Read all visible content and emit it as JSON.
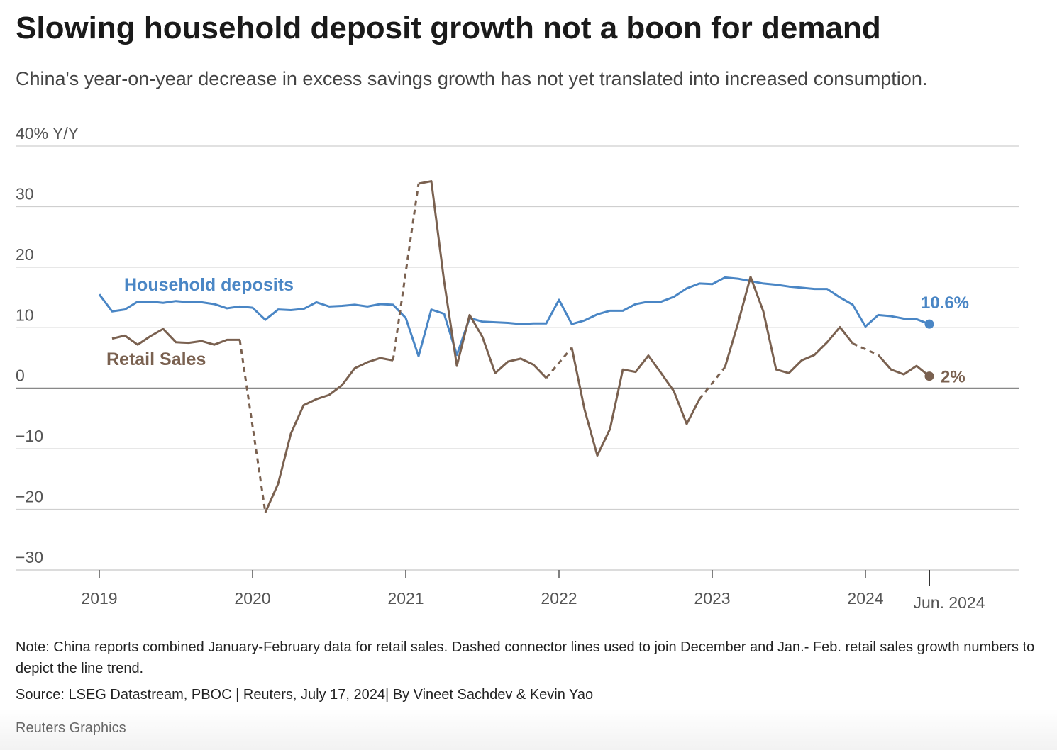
{
  "chart_data": {
    "type": "line",
    "title": "Slowing household deposit growth not a boon for demand",
    "subtitle": "China's year-on-year decrease in excess savings growth has not yet translated into increased consumption.",
    "note": "Note: China reports combined January-February data for retail sales. Dashed connector lines used to join December and Jan.- Feb. retail sales growth numbers to depict the line trend.",
    "source": "Source: LSEG Datastream, PBOC | Reuters, July 17, 2024| By Vineet Sachdev & Kevin Yao",
    "credit": "Reuters Graphics",
    "x": [
      "2019-01",
      "2019-02",
      "2019-03",
      "2019-04",
      "2019-05",
      "2019-06",
      "2019-07",
      "2019-08",
      "2019-09",
      "2019-10",
      "2019-11",
      "2019-12",
      "2020-01",
      "2020-02",
      "2020-03",
      "2020-04",
      "2020-05",
      "2020-06",
      "2020-07",
      "2020-08",
      "2020-09",
      "2020-10",
      "2020-11",
      "2020-12",
      "2021-01",
      "2021-02",
      "2021-03",
      "2021-04",
      "2021-05",
      "2021-06",
      "2021-07",
      "2021-08",
      "2021-09",
      "2021-10",
      "2021-11",
      "2021-12",
      "2022-01",
      "2022-02",
      "2022-03",
      "2022-04",
      "2022-05",
      "2022-06",
      "2022-07",
      "2022-08",
      "2022-09",
      "2022-10",
      "2022-11",
      "2022-12",
      "2023-01",
      "2023-02",
      "2023-03",
      "2023-04",
      "2023-05",
      "2023-06",
      "2023-07",
      "2023-08",
      "2023-09",
      "2023-10",
      "2023-11",
      "2023-12",
      "2024-01",
      "2024-02",
      "2024-03",
      "2024-04",
      "2024-05",
      "2024-06"
    ],
    "series": [
      {
        "name": "Household deposits",
        "color": "#4a86c5",
        "end_label": "10.6%",
        "values": [
          15.5,
          12.7,
          13.0,
          14.3,
          14.3,
          14.1,
          14.4,
          14.2,
          14.2,
          13.9,
          13.2,
          13.5,
          13.3,
          11.3,
          13.0,
          12.9,
          13.1,
          14.2,
          13.5,
          13.6,
          13.8,
          13.5,
          13.9,
          13.8,
          11.6,
          5.3,
          13.0,
          12.3,
          5.5,
          11.6,
          11.0,
          10.9,
          10.8,
          10.6,
          10.7,
          10.7,
          14.6,
          10.6,
          11.2,
          12.2,
          12.8,
          12.8,
          13.9,
          14.3,
          14.3,
          15.1,
          16.5,
          17.3,
          17.2,
          18.3,
          18.1,
          17.7,
          17.3,
          17.1,
          16.8,
          16.6,
          16.4,
          16.4,
          15.0,
          13.8,
          10.2,
          12.1,
          11.9,
          11.5,
          11.4,
          10.6
        ]
      },
      {
        "name": "Retail Sales",
        "color": "#7a6150",
        "end_label": "2%",
        "values": [
          null,
          8.2,
          8.7,
          7.2,
          8.6,
          9.8,
          7.6,
          7.5,
          7.8,
          7.2,
          8.0,
          8.0,
          null,
          -20.5,
          -15.8,
          -7.5,
          -2.8,
          -1.8,
          -1.1,
          0.5,
          3.3,
          4.3,
          5.0,
          4.6,
          null,
          33.8,
          34.2,
          17.7,
          3.7,
          12.1,
          8.5,
          2.5,
          4.4,
          4.9,
          3.9,
          1.7,
          null,
          6.7,
          -3.5,
          -11.1,
          -6.7,
          3.1,
          2.7,
          5.4,
          2.5,
          -0.5,
          -5.9,
          -1.8,
          null,
          3.5,
          10.6,
          18.4,
          12.7,
          3.1,
          2.5,
          4.6,
          5.5,
          7.6,
          10.1,
          7.4,
          null,
          5.5,
          3.1,
          2.3,
          3.7,
          2.0
        ]
      }
    ],
    "connect_gaps": "dashed",
    "xlim": [
      "2018-07",
      "2025-01"
    ],
    "xticks": [
      {
        "value": "2019-01",
        "label": "2019"
      },
      {
        "value": "2020-01",
        "label": "2020"
      },
      {
        "value": "2021-01",
        "label": "2021"
      },
      {
        "value": "2022-01",
        "label": "2022"
      },
      {
        "value": "2023-01",
        "label": "2023"
      },
      {
        "value": "2024-01",
        "label": "2024"
      },
      {
        "value": "2024-06",
        "label": "Jun. 2024"
      }
    ],
    "ylim": [
      -30,
      40
    ],
    "yticks": [
      {
        "value": -30,
        "label": "−30"
      },
      {
        "value": -20,
        "label": "−20"
      },
      {
        "value": -10,
        "label": "−10"
      },
      0,
      10,
      20,
      30,
      {
        "value": 40,
        "label": "40% Y/Y"
      }
    ],
    "grid": true
  }
}
